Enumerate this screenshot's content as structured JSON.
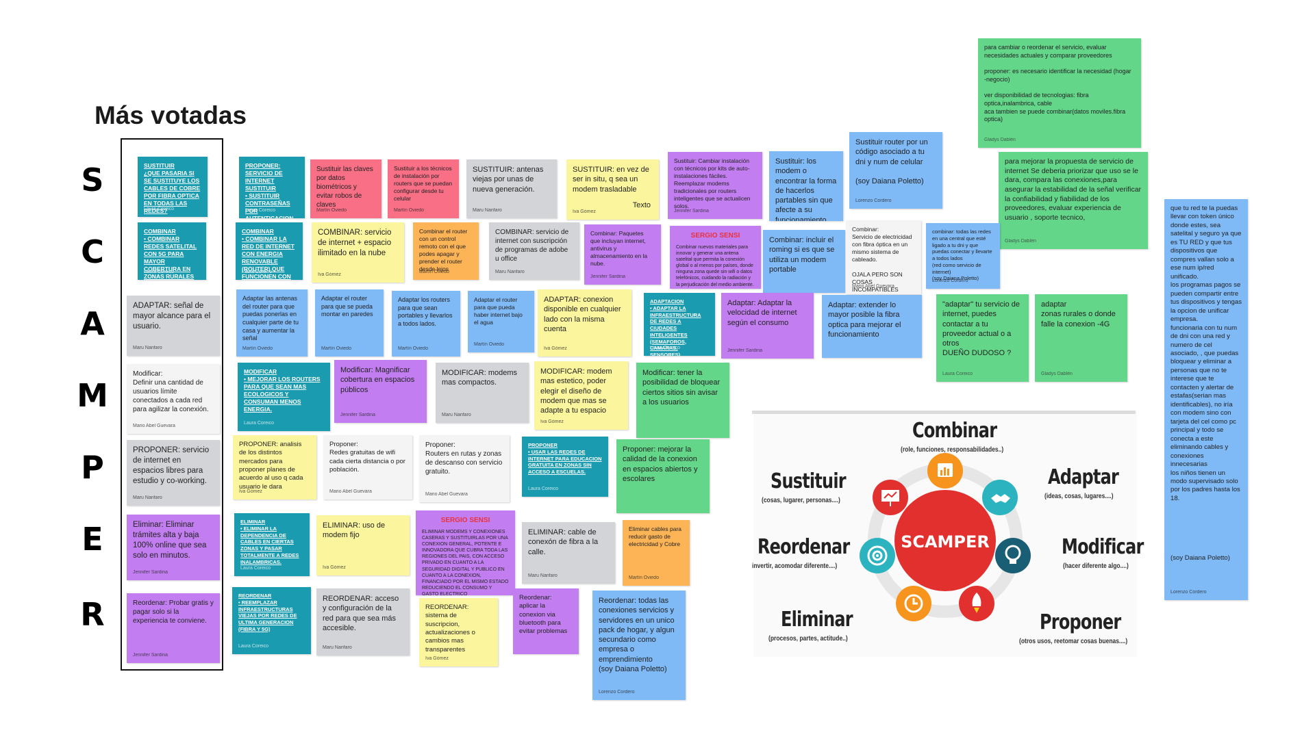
{
  "title": "Más votadas",
  "letters": [
    "S",
    "C",
    "A",
    "M",
    "P",
    "E",
    "R"
  ],
  "notes": {
    "mv_s": {
      "text": "SUSTITUIR\n¿QUE PASARIA SI SE SUSTITUYE LOS CABLES DE COBRE POR FIBRA OPTICA EN TODAS LAS REDES?",
      "author": "Laura Coreico"
    },
    "mv_c": {
      "text": "COMBINAR\n• COMBINAR REDES SATELITAL CON 5G PARA MAYOR COBERTURA EN ZONAS RURALES",
      "author": "Laura Coreico"
    },
    "mv_a": {
      "text": "ADAPTAR: señal de mayor alcance para el usuario.",
      "author": "Maru Nanfaro"
    },
    "mv_m": {
      "text": "Modificar:\nDefinir una cantidad de usuarios límite conectados a cada red para agilizar la conexión.",
      "author": "Mario Abel Guevara"
    },
    "mv_p": {
      "text": "PROPONER: servicio de internet en espacios libres para estudio y co-working.",
      "author": "Maru Nanfaro"
    },
    "mv_e": {
      "text": "Eliminar: Eliminar trámites alta y baja 100% online que sea solo en minutos.",
      "author": "Jennifer Sardina"
    },
    "mv_r": {
      "text": "Reordenar: Probar gratis y pagar solo si la experiencia te conviene.",
      "author": "Jennifer Sardina"
    },
    "s1": {
      "text": "PROPONER: SERVICIO DE INTERNET\nSUSTITUIR\n• SUSTITUIR CONTRASEÑAS POR AUTENTICACION BIOMETRICA PARA MAYOR SEGURIDAD.",
      "author": "Laura Coreico"
    },
    "s2": {
      "text": "Sustituir las claves por datos biométricos y evitar robos de claves",
      "author": "Martín Oviedo"
    },
    "s3": {
      "text": "Sustituir a los técnicos de instalación por routers que se puedan configurar desde tu celular",
      "author": "Martín Oviedo"
    },
    "s4": {
      "text": "SUSTITUIR: antenas viejas por unas de nueva generación.",
      "author": "Maru Nanfaro"
    },
    "s5": {
      "text": "SUSTITUIR: en vez de ser in situ, q sea un modem trasladable",
      "author": "Iva Gómez",
      "tag": "Texto"
    },
    "s6": {
      "text": "Sustituir: Cambiar instalación con técnicos por kits de auto-instalaciones fáciles.\nReemplazar modems tradicionales por routers inteligentes que se actualicen solos.",
      "author": "Jennifer Sardina"
    },
    "s7": {
      "text": "Sustituir: los modem o encontrar la forma de hacerlos partables sin que afecte a su funcionamiento",
      "author": ""
    },
    "s8": {
      "text": "Sustituir router por un código asociado a tu dni y num de celular\n\n(soy Daiana Poletto)",
      "author": "Lorenzo Cordero"
    },
    "s9": {
      "text": "para cambiar o reordenar el servicio, evaluar necesidades actuales y comparar proveedores\n\nproponer: es necesario identificar la necesidad (hogar -negocio)\n\nver disponibilidad de tecnologias: fibra optica,inalambrica, cable\naca tambien se puede combinar(datos moviles.fibra optica)",
      "author": "Gladys Dablén"
    },
    "s10": {
      "text": "para mejorar  la propuesta de servicio de internet Se deberia priorizar que uso se le dara, compara las conexiones,para asegurar la estabilidad de la señal verificar la confiabilidad y fiabilidad de los proveedores, evaluar experiencia de usuario , soporte tecnico,",
      "author": "Gladys Dablén"
    },
    "s11": {
      "text": "que tu red te la puedas llevar con token único donde estes, sea satelital y seguro ya que es TU RED y  que tus dispositivos que compres vallan solo a ese num ip/red unificado.\nlos programas pagos se pueden compartir entre tus dispositivos y tengas la opcion de unificar empresa.\nfuncionaria con tu num de dni con una red y numero de cel asociado, , que puedas bloquear y eliminar a personas que no te interese que te contacten y alertar de estafas(serian mas identificables), no iría con modem sino con tarjeta del cel como pc principal y todo se conecta a este eliminando cables y conexiones innecesarias\nlos niños tienen un modo supervisado solo por los padres hasta los 18.\n\n\n\n\n\n\n(soy Daiana Poletto)",
      "author": "Lorenzo Cordero"
    },
    "c1": {
      "text": "COMBINAR\n• COMBINAR LA RED DE INTERNET CON ENERGIA RENOVABLE (ROUTER) QUE FUNCIONEN CON PANELES SOLARES.",
      "author": "Laura Coreico"
    },
    "c2": {
      "text": "COMBINAR: servicio de internet + espacio ilimitado en la nube",
      "author": "Iva Gómez"
    },
    "c3": {
      "text": "Combinar el router con un control remoto con el que podes apagar y prender el router desde lejos",
      "author": "Martín Oviedo"
    },
    "c4": {
      "text": "COMBINAR: servicio de internet con suscripción de programas de adobe u office",
      "author": "Maru Nanfaro"
    },
    "c5": {
      "text": "Combinar: Paquetes que incluyan internet, antivirus y almacenamiento en la nube.",
      "author": "Jennifer Sardina"
    },
    "c6": {
      "header": "SERGIO SENSI",
      "text": "Combinar nuevos materiales para innovar y generar una antena satelital que permita la conexión global o al menos por países, donde ninguna zona quede sin wifi o datos telefónicos, cuidando la radiación y la perjudicación del medio ambiente.",
      "author": ""
    },
    "c7": {
      "text": "Combinar: incluir el roming si es que se utiliza un modem portable",
      "author": ""
    },
    "c8": {
      "text": "Combinar:\nServicio de electricidad con fibra óptica en un mismo sistema de cableado.\n\nOJALA PERO SON COSAS INCOMPATIBLES",
      "author": "Mario Abel Guevara"
    },
    "c9": {
      "text": "combinar: todas las redes en una central que esté ligado a tu dni y que puedas conectar y llevarte a todos lados\n(red como servicio de internet)\n(soy Daiana Poletto)",
      "author": "Lorenzo Cordero"
    },
    "a1": {
      "text": "Adaptar las antenas del router para que puedas ponerlas en cualquier parte de tu casa y aumentar la señal",
      "author": "Martín Oviedo"
    },
    "a2": {
      "text": "Adaptar el router para que se pueda montar en paredes",
      "author": "Martín Oviedo"
    },
    "a3": {
      "text": "Adaptar los routers para que sean portables y llevarlos a todos lados.",
      "author": "Martín Oviedo"
    },
    "a4": {
      "text": "Adaptar el router para que pueda haber internet bajo el agua",
      "author": "Martín Oviedo"
    },
    "a5": {
      "text": "ADAPTAR: conexion disponible en cualquier lado con la misma cuenta",
      "author": "Iva Gómez"
    },
    "a6": {
      "text": "ADAPTACION\n• ADAPTAR LA INFRAESTRUCTURA DE REDES A CIUDADES INTELIGENTES (SEMAFOROS, CAMARAS, SENSORES)",
      "author": "Laura Coreico"
    },
    "a7": {
      "text": "Adaptar: Adaptar la velocidad de internet según el consumo",
      "author": "Jennifer Sardina"
    },
    "a8": {
      "text": "Adaptar: extender lo mayor posible la fibra optica para mejorar el funcionamiento",
      "author": ""
    },
    "a9": {
      "text": "\"adaptar\" tu servicio de internet, puedes contactar a tu proveedor actual o a otros\nDUEÑO DUDOSO ?",
      "author": "Laura Coreico"
    },
    "a10": {
      "text": "adaptar\nzonas rurales o donde falle la conexion  -4G",
      "author": "Gladys Dablén"
    },
    "m1": {
      "text": "MODIFICAR\n• MEJORAR LOS ROUTERS PARA QUE SEAN MAS ECOLOGICOS Y CONSUMAN MENOS ENERGIA.",
      "author": "Laura Coreico"
    },
    "m2": {
      "text": "Modificar: Magnificar cobertura en espacios públicos",
      "author": "Jennifer Sardina"
    },
    "m3": {
      "text": "MODIFICAR: modems mas compactos.",
      "author": "Maru Nanfaro"
    },
    "m4": {
      "text": "MODIFICAR: modem mas estetico, poder elegir el diseño de modem que mas se adapte a tu espacio",
      "author": "Iva Gómez"
    },
    "m5": {
      "text": "Modificar: tener la posibilidad de bloquear ciertos sitios sin avisar a los usuarios",
      "author": ""
    },
    "p1": {
      "text": "PROPONER: analisis de los distintos mercados para proponer planes de acuerdo al uso q cada usuario le dara",
      "author": "Iva Gómez"
    },
    "p2": {
      "text": "Proponer:\nRedes gratuitas de wifi cada cierta distancia o por población.",
      "author": "Mario Abel Guevara"
    },
    "p3": {
      "text": "Proponer:\nRouters en rutas y zonas de descanso con servicio gratuito.",
      "author": "Mario Abel Guevara"
    },
    "p4": {
      "text": "PROPONER\n• USAR LAS REDES DE INTERNET PARA EDUCACION GRATUITA EN ZONAS SIN ACCESO A ESCUELAS.",
      "author": "Laura Coreico"
    },
    "p5": {
      "text": "Proponer: mejorar la calidad de la conexion en espacios abiertos y escolares",
      "author": ""
    },
    "e1": {
      "text": "ELIMINAR\n• ELIMINAR LA DEPENDENCIA DE CABLES EN CIERTAS ZONAS Y PASAR TOTALMENTE A REDES INALAMBRICAS.",
      "author": "Laura Coreico"
    },
    "e2": {
      "text": "ELIMINAR: uso de modem fijo",
      "author": "Iva Gómez"
    },
    "e3": {
      "header": "SERGIO SENSI",
      "text": "ELIMINAR MODEMS Y CONEXIONES CASERAS Y SUSTITUIRLAS POR UNA CONEXION GENERAL, POTENTE E INNOVADORA QUE CUBRA TODA LAS REGIONES DEL PAIS, CON ACCESO PRIVADO EN CUANTO A LA SEGURIDAD DIGITAL Y PUBLICO EN CUANTO A LA CONEXION, FINANCIADO POR EL MISMO ESTADO REDUCIENDO EL CONSUMO Y GASTO ELECTRICO",
      "author": ""
    },
    "e4": {
      "text": "ELIMINAR: cable de conexón de fibra a la calle.",
      "author": "Maru Nanfaro"
    },
    "e5": {
      "text": "Eliminar cables para reducir gasto de electricidad y Cobre",
      "author": "Martín Oviedo"
    },
    "r1": {
      "text": "REORDENAR\n• REEMPLAZAR INFRAESTRUCTURAS VIEJAS POR REDES DE ULTIMA GENERACION (FIBRA Y 5G)",
      "author": "Laura Coreico"
    },
    "r2": {
      "text": "REORDENAR: acceso y configuración de la red para que sea más accesible.",
      "author": "Maru Nanfaro"
    },
    "r3": {
      "text": "REORDENAR: sistema de suscripcion, actualizaciones o cambios mas transparentes",
      "author": "Iva Gómez"
    },
    "r4": {
      "text": "Reordenar: aplicar la conexion via bluetooth para evitar problemas",
      "author": ""
    },
    "r5": {
      "text": "Reordenar: todas las conexiones servicios y servidores en un unico pack de hogar, y algun secundario como empresa o emprendimiento\n(soy Daiana Poletto)",
      "author": "Lorenzo Cordero"
    }
  },
  "diagram": {
    "center": "SCAMPER",
    "segments": [
      {
        "name": "Combinar",
        "sub": "(role, funciones, responsabilidades..)",
        "color": "#f7941d",
        "icon": "chart-icon"
      },
      {
        "name": "Adaptar",
        "sub": "(ideas, cosas, lugares....)",
        "color": "#2bb3c0",
        "icon": "handshake-icon"
      },
      {
        "name": "Modificar",
        "sub": "(hacer diferente algo....)",
        "color": "#1a5e75",
        "icon": "lightbulb-icon"
      },
      {
        "name": "Proponer",
        "sub": "(otros usos, reetomar cosas buenas....)",
        "color": "#e2302f",
        "icon": "rocket-icon"
      },
      {
        "name": "Eliminar",
        "sub": "(procesos, partes, actitude..)",
        "color": "#f7941d",
        "icon": "clock-icon"
      },
      {
        "name": "Reordenar",
        "sub": "invertir, acomodar diferente....)",
        "color": "#2bb3c0",
        "icon": "target-icon"
      },
      {
        "name": "Sustituir",
        "sub": "(cosas, lugarer, personas....)",
        "color": "#e2302f",
        "icon": "presentation-icon"
      }
    ]
  }
}
